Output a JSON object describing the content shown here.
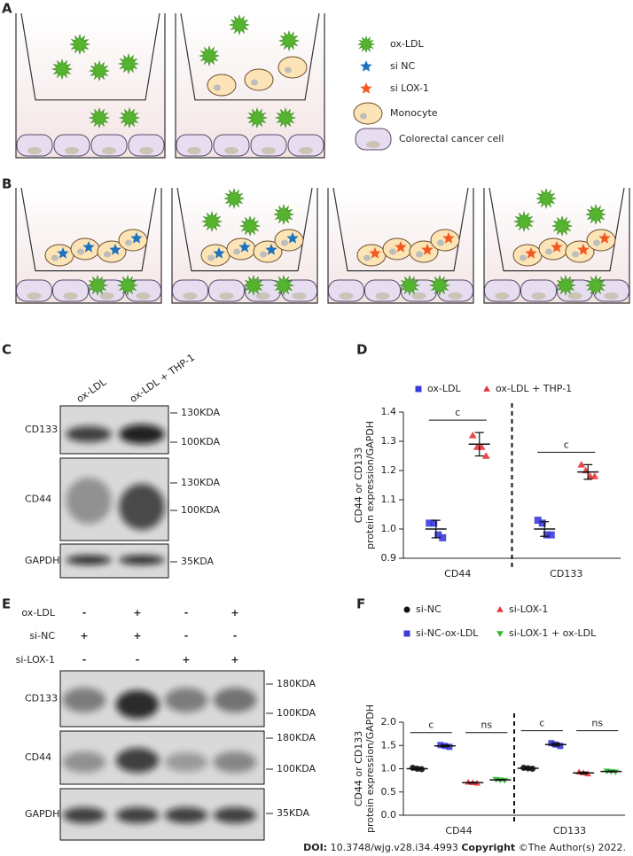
{
  "panels": {
    "a": "A",
    "b": "B",
    "c": "C",
    "d": "D",
    "e": "E",
    "f": "F"
  },
  "legend_a": [
    "ox-LDL",
    "si NC",
    "si LOX-1",
    "Monocyte",
    "Colorectal cancer cell"
  ],
  "blot_c": {
    "lanes": [
      "ox-LDL",
      "ox-LDL + THP-1"
    ],
    "rows": [
      {
        "label": "CD133",
        "markers": [
          "130KDA",
          "100KDA"
        ]
      },
      {
        "label": "CD44",
        "markers": [
          "130KDA",
          "100KDA"
        ]
      },
      {
        "label": "GAPDH",
        "markers": [
          "35KDA"
        ]
      }
    ]
  },
  "blot_e": {
    "conditions": [
      {
        "label": "ox-LDL",
        "signs": [
          "-",
          "+",
          "-",
          "+"
        ]
      },
      {
        "label": "si-NC",
        "signs": [
          "+",
          "+",
          "-",
          "-"
        ]
      },
      {
        "label": "si-LOX-1",
        "signs": [
          "-",
          "-",
          "+",
          "+"
        ]
      }
    ],
    "rows": [
      {
        "label": "CD133",
        "markers": [
          "180KDA",
          "100KDA"
        ]
      },
      {
        "label": "CD44",
        "markers": [
          "180KDA",
          "100KDA"
        ]
      },
      {
        "label": "GAPDH",
        "markers": [
          "35KDA"
        ]
      }
    ]
  },
  "chart_data": [
    {
      "type": "scatter",
      "ylabel": [
        "CD44 or CD133",
        "protein expression/GAPDH"
      ],
      "categories": [
        "CD44",
        "CD133"
      ],
      "series": [
        {
          "name": "ox-LDL",
          "color": "#3b3bdb",
          "marker": "square",
          "values": [
            [
              1.02,
              1.02,
              0.98,
              0.97
            ],
            [
              1.03,
              1.02,
              0.98,
              0.98
            ]
          ],
          "mean": [
            1.0,
            1.0
          ],
          "sd": [
            0.03,
            0.025
          ]
        },
        {
          "name": "ox-LDL + THP-1",
          "color": "#e8343a",
          "marker": "triangle",
          "values": [
            [
              1.32,
              1.28,
              1.28,
              1.25
            ],
            [
              1.22,
              1.2,
              1.18,
              1.18
            ]
          ],
          "mean": [
            1.29,
            1.195
          ],
          "sd": [
            0.04,
            0.025
          ]
        }
      ],
      "significance": [
        [
          "c"
        ],
        [
          "c"
        ]
      ],
      "ylim": [
        0.9,
        1.4
      ],
      "yticks": [
        0.9,
        {
          "value": 1,
          "label": "1.0"
        },
        1.1,
        1.2,
        1.3,
        1.4
      ],
      "divider": true
    },
    {
      "type": "scatter",
      "ylabel": [
        "CD44 or CD133",
        "protein expression/GAPDH"
      ],
      "categories": [
        "CD44",
        "CD133"
      ],
      "series": [
        {
          "name": "si-NC",
          "color": "#111111",
          "marker": "circle",
          "values": [
            [
              1.02,
              1.0,
              0.99
            ],
            [
              1.02,
              1.01,
              1.0
            ]
          ],
          "mean": [
            1.0,
            1.01
          ],
          "sd": [
            0.02,
            0.02
          ]
        },
        {
          "name": "si-NC-ox-LDL",
          "color": "#3b3bdb",
          "marker": "square",
          "values": [
            [
              1.51,
              1.49,
              1.47
            ],
            [
              1.55,
              1.52,
              1.49
            ]
          ],
          "mean": [
            1.49,
            1.52
          ],
          "sd": [
            0.02,
            0.03
          ]
        },
        {
          "name": "si-LOX-1",
          "color": "#e8343a",
          "marker": "triangle",
          "values": [
            [
              0.71,
              0.7,
              0.69
            ],
            [
              0.93,
              0.91,
              0.89
            ]
          ],
          "mean": [
            0.7,
            0.91
          ],
          "sd": [
            0.01,
            0.02
          ]
        },
        {
          "name": "si-LOX-1 + ox-LDL",
          "color": "#2dbb2d",
          "marker": "triangle-down",
          "values": [
            [
              0.77,
              0.76,
              0.75
            ],
            [
              0.95,
              0.94,
              0.93
            ]
          ],
          "mean": [
            0.76,
            0.94
          ],
          "sd": [
            0.01,
            0.01
          ]
        }
      ],
      "significance": [
        [
          "c",
          "ns"
        ],
        [
          "c",
          "ns"
        ]
      ],
      "ylim": [
        0,
        2
      ],
      "yticks": [
        {
          "value": 0,
          "label": "0.0"
        },
        0.5,
        {
          "value": 1,
          "label": "1.0"
        },
        1.5,
        {
          "value": 2,
          "label": "2.0"
        }
      ],
      "divider": true
    }
  ],
  "footer": {
    "doi_label": "DOI:",
    "doi": "10.3748/wjg.v28.i34.4993",
    "copyright_label": "Copyright",
    "copyright": "©The Author(s) 2022."
  }
}
